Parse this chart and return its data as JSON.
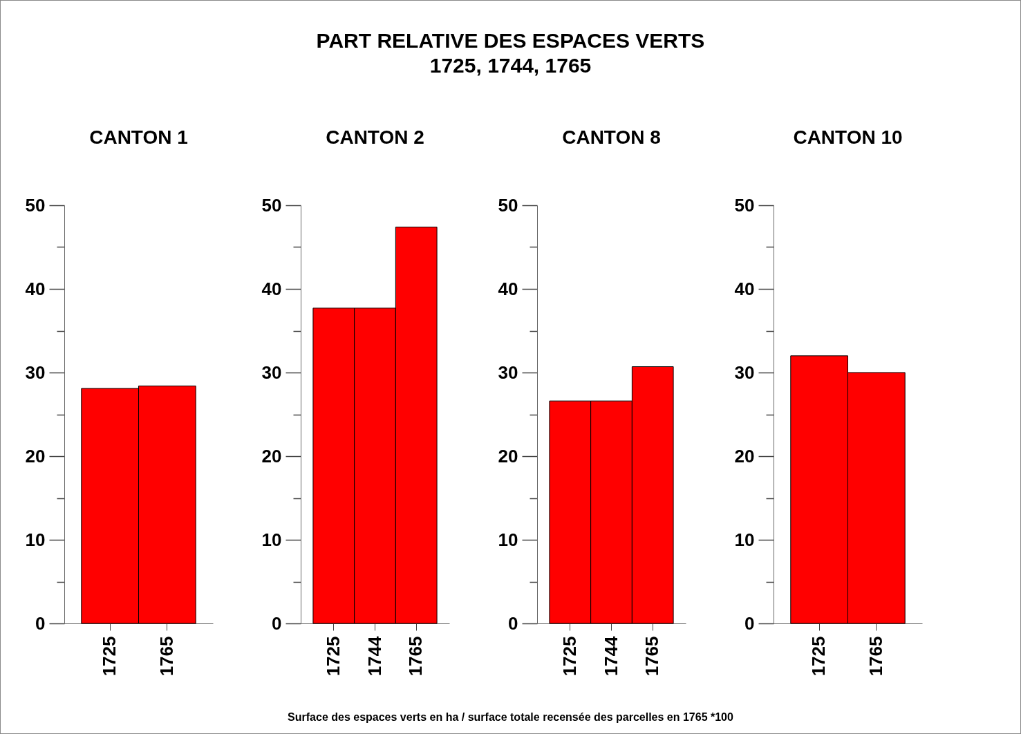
{
  "chart_data": [
    {
      "type": "bar",
      "title": "CANTON 1",
      "categories": [
        "1725",
        "1765"
      ],
      "values": [
        28.1,
        28.4
      ],
      "color": "#ff0000",
      "ylim": [
        0,
        50
      ],
      "yticks": [
        0,
        {
          "value": 5,
          "label": null
        },
        10,
        {
          "value": 15,
          "label": null
        },
        20,
        {
          "value": 25,
          "label": null
        },
        30,
        {
          "value": 35,
          "label": null
        },
        40,
        {
          "value": 45,
          "label": null
        },
        50
      ],
      "grid": false,
      "annotations": [
        "PART RELATIVE DES ESPACES VERTS\n1725, 1744, 1765",
        "Surface des espaces verts en ha / surface totale recensée des parcelles en 1765 *100"
      ]
    },
    {
      "type": "bar",
      "title": "CANTON 2",
      "categories": [
        "1725",
        "1744",
        "1765"
      ],
      "values": [
        37.7,
        37.7,
        47.4
      ],
      "color": "#ff0000",
      "ylim": [
        0,
        50
      ],
      "yticks": [
        0,
        {
          "value": 5,
          "label": null
        },
        10,
        {
          "value": 15,
          "label": null
        },
        20,
        {
          "value": 25,
          "label": null
        },
        30,
        {
          "value": 35,
          "label": null
        },
        40,
        {
          "value": 45,
          "label": null
        },
        50
      ],
      "grid": false
    },
    {
      "type": "bar",
      "title": "CANTON 8",
      "categories": [
        "1725",
        "1744",
        "1765"
      ],
      "values": [
        26.6,
        26.6,
        30.7
      ],
      "color": "#ff0000",
      "ylim": [
        0,
        50
      ],
      "yticks": [
        0,
        {
          "value": 5,
          "label": null
        },
        10,
        {
          "value": 15,
          "label": null
        },
        20,
        {
          "value": 25,
          "label": null
        },
        30,
        {
          "value": 35,
          "label": null
        },
        40,
        {
          "value": 45,
          "label": null
        },
        50
      ],
      "grid": false
    },
    {
      "type": "bar",
      "title": "CANTON 10",
      "categories": [
        "1725",
        "1765"
      ],
      "values": [
        32.0,
        30.0
      ],
      "color": "#ff0000",
      "ylim": [
        0,
        50
      ],
      "yticks": [
        0,
        {
          "value": 5,
          "label": null
        },
        10,
        {
          "value": 15,
          "label": null
        },
        20,
        {
          "value": 25,
          "label": null
        },
        30,
        {
          "value": 35,
          "label": null
        },
        40,
        {
          "value": 45,
          "label": null
        },
        50
      ],
      "grid": false
    }
  ]
}
